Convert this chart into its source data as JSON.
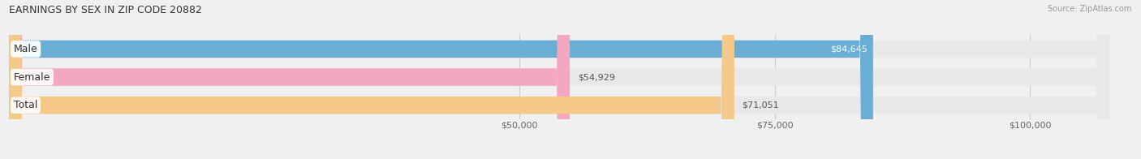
{
  "title": "EARNINGS BY SEX IN ZIP CODE 20882",
  "source": "Source: ZipAtlas.com",
  "categories": [
    "Male",
    "Female",
    "Total"
  ],
  "values": [
    84645,
    54929,
    71051
  ],
  "bar_colors": [
    "#6aaed6",
    "#f4a8c0",
    "#f5c98a"
  ],
  "bar_bg_color": "#e8e8e8",
  "xmin": 0,
  "xmax": 110000,
  "xticks": [
    50000,
    75000,
    100000
  ],
  "xtick_labels": [
    "$50,000",
    "$75,000",
    "$100,000"
  ],
  "bar_height": 0.62,
  "figsize": [
    14.06,
    1.96
  ],
  "dpi": 100,
  "background_color": "#f0f0f0",
  "title_fontsize": 9,
  "tick_fontsize": 8,
  "bar_label_fontsize": 8,
  "category_fontsize": 9,
  "male_label_inside": true,
  "label_inside_color": "#ffffff",
  "label_outside_color": "#555555"
}
